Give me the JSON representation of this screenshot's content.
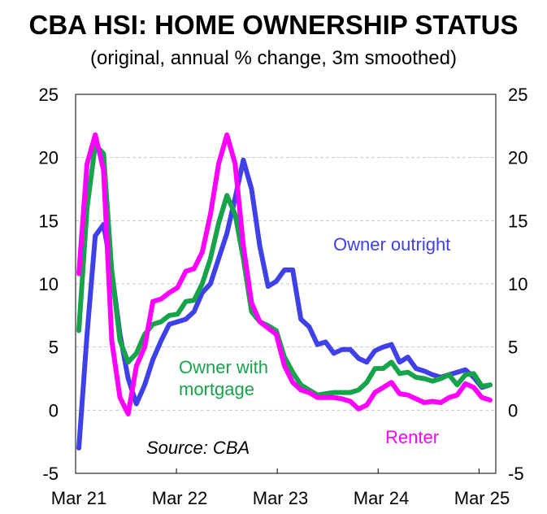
{
  "chart_data": {
    "type": "line",
    "title": "CBA HSI: HOME OWNERSHIP STATUS",
    "subtitle": "(original, annual % change, 3m smoothed)",
    "xlabel": "",
    "ylabel": "",
    "ylim": [
      -5,
      25
    ],
    "yticks": [
      "25",
      "20",
      "15",
      "10",
      "5",
      "0",
      "-5"
    ],
    "yticks_right": [
      "25",
      "20",
      "15",
      "10",
      "5",
      "0",
      "-5"
    ],
    "xticks": [
      "Mar 21",
      "Mar 22",
      "Mar 23",
      "Mar 24",
      "Mar 25"
    ],
    "grid": "horizontal dashed",
    "source": "Source: CBA",
    "colors": {
      "owner_outright": "#4040e8",
      "owner_mortgage": "#16a34a",
      "renter": "#ff00ff"
    },
    "series": [
      {
        "name": "Owner outright",
        "label_lines": [
          "Owner outright"
        ],
        "color": "#4040e8",
        "values": [
          -3,
          6,
          13.8,
          14.7,
          11,
          6,
          2.5,
          0.5,
          2,
          4,
          5.5,
          6.8,
          7,
          7.2,
          7.8,
          9.3,
          10,
          12,
          14,
          16.8,
          19.8,
          17.5,
          13,
          9.8,
          10.2,
          11.1,
          11.1,
          7.2,
          6.6,
          5.2,
          5.4,
          4.5,
          4.8,
          4.8,
          4.1,
          3.8,
          4.7,
          5,
          5.2,
          3.8,
          4.2,
          3.3,
          3.1,
          2.8,
          2.6,
          2.8,
          3,
          3.2,
          2.6,
          1.8,
          2
        ]
      },
      {
        "name": "Owner with mortgage",
        "label_lines": [
          "Owner with",
          "mortgage"
        ],
        "color": "#16a34a",
        "values": [
          6.3,
          16,
          21,
          20.3,
          11,
          5.5,
          3.8,
          4.5,
          6,
          6.8,
          7,
          7.5,
          7.6,
          8.6,
          8.7,
          10,
          12,
          14.8,
          17,
          15.5,
          12,
          7.8,
          7,
          6.7,
          6.3,
          4.2,
          3,
          2,
          1.6,
          1.2,
          1.3,
          1.4,
          1.4,
          1.4,
          1.6,
          2.2,
          3.3,
          3.3,
          3.8,
          2.9,
          3,
          2.6,
          2.5,
          2.3,
          2.5,
          2.8,
          2,
          2.8,
          2.9,
          1.9,
          2
        ]
      },
      {
        "name": "Renter",
        "label_lines": [
          "Renter"
        ],
        "color": "#ff00ff",
        "values": [
          10.8,
          19.5,
          21.8,
          19,
          5.5,
          1,
          -0.3,
          3.5,
          5,
          8.6,
          8.8,
          9.3,
          9.7,
          11,
          11.2,
          12.5,
          15.5,
          19.5,
          21.8,
          19.5,
          13,
          8.5,
          7,
          6.5,
          6,
          3.5,
          2.2,
          1.6,
          1.4,
          1,
          1,
          1,
          0.9,
          0.7,
          0.1,
          0.4,
          1.4,
          1.8,
          2.2,
          1.3,
          1.2,
          0.9,
          0.6,
          0.7,
          0.6,
          1,
          1.2,
          2.1,
          1.8,
          1,
          0.8
        ]
      }
    ]
  }
}
